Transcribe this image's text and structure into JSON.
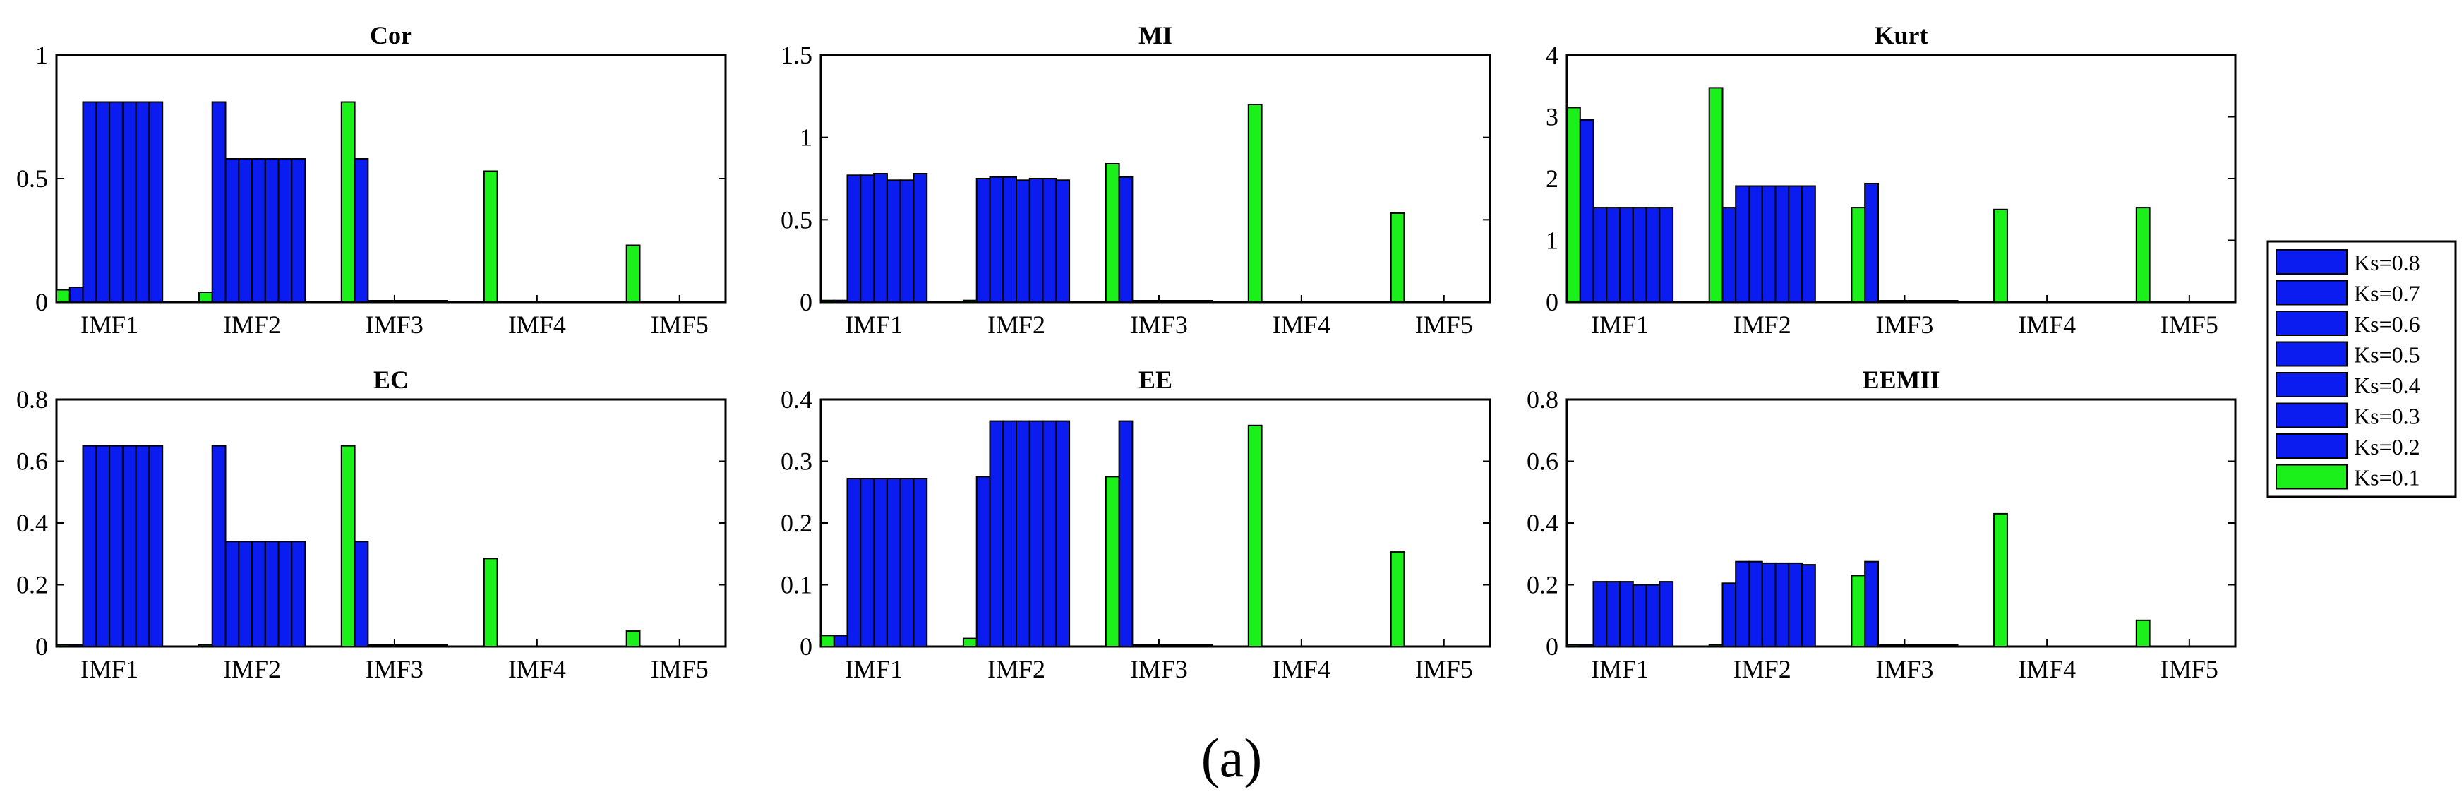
{
  "figure": {
    "caption": "(a)"
  },
  "colors": {
    "blue": "#0B1CF0",
    "green": "#1BF01B",
    "edge": "#000000"
  },
  "legend": {
    "entries": [
      {
        "label": "Ks=0.8",
        "color": "#0B1CF0"
      },
      {
        "label": "Ks=0.7",
        "color": "#0B1CF0"
      },
      {
        "label": "Ks=0.6",
        "color": "#0B1CF0"
      },
      {
        "label": "Ks=0.5",
        "color": "#0B1CF0"
      },
      {
        "label": "Ks=0.4",
        "color": "#0B1CF0"
      },
      {
        "label": "Ks=0.3",
        "color": "#0B1CF0"
      },
      {
        "label": "Ks=0.2",
        "color": "#0B1CF0"
      },
      {
        "label": "Ks=0.1",
        "color": "#1BF01B"
      }
    ]
  },
  "chart_data": [
    {
      "type": "bar",
      "title": "Cor",
      "categories": [
        "IMF1",
        "IMF2",
        "IMF3",
        "IMF4",
        "IMF5"
      ],
      "ylim": [
        0,
        1
      ],
      "yticks": [
        "0",
        "0.5",
        "1"
      ],
      "ytick_values": [
        0,
        0.5,
        1
      ],
      "series": [
        {
          "name": "Ks=0.1",
          "values": [
            0.05,
            0.04,
            0.81,
            0.53,
            0.23
          ]
        },
        {
          "name": "Ks=0.2",
          "values": [
            0.06,
            0.81,
            0.58,
            0,
            0
          ]
        },
        {
          "name": "Ks=0.3",
          "values": [
            0.81,
            0.58,
            0,
            0,
            0
          ]
        },
        {
          "name": "Ks=0.4",
          "values": [
            0.81,
            0.58,
            0,
            0,
            0
          ]
        },
        {
          "name": "Ks=0.5",
          "values": [
            0.81,
            0.58,
            0,
            0,
            0
          ]
        },
        {
          "name": "Ks=0.6",
          "values": [
            0.81,
            0.58,
            0,
            0,
            0
          ]
        },
        {
          "name": "Ks=0.7",
          "values": [
            0.81,
            0.58,
            0,
            0,
            0
          ]
        },
        {
          "name": "Ks=0.8",
          "values": [
            0.81,
            0.58,
            0,
            0,
            0
          ]
        }
      ]
    },
    {
      "type": "bar",
      "title": "MI",
      "categories": [
        "IMF1",
        "IMF2",
        "IMF3",
        "IMF4",
        "IMF5"
      ],
      "ylim": [
        0,
        1.5
      ],
      "yticks": [
        "0",
        "0.5",
        "1",
        "1.5"
      ],
      "ytick_values": [
        0,
        0.5,
        1,
        1.5
      ],
      "series": [
        {
          "name": "Ks=0.1",
          "values": [
            0.01,
            0.01,
            0.84,
            1.2,
            0.54
          ]
        },
        {
          "name": "Ks=0.2",
          "values": [
            0.01,
            0.75,
            0.76,
            0,
            0
          ]
        },
        {
          "name": "Ks=0.3",
          "values": [
            0.77,
            0.76,
            0,
            0,
            0
          ]
        },
        {
          "name": "Ks=0.4",
          "values": [
            0.77,
            0.76,
            0,
            0,
            0
          ]
        },
        {
          "name": "Ks=0.5",
          "values": [
            0.78,
            0.74,
            0,
            0,
            0
          ]
        },
        {
          "name": "Ks=0.6",
          "values": [
            0.74,
            0.75,
            0,
            0,
            0
          ]
        },
        {
          "name": "Ks=0.7",
          "values": [
            0.74,
            0.75,
            0,
            0,
            0
          ]
        },
        {
          "name": "Ks=0.8",
          "values": [
            0.78,
            0.74,
            0,
            0,
            0
          ]
        }
      ]
    },
    {
      "type": "bar",
      "title": "Kurt",
      "categories": [
        "IMF1",
        "IMF2",
        "IMF3",
        "IMF4",
        "IMF5"
      ],
      "ylim": [
        0,
        4
      ],
      "yticks": [
        "0",
        "1",
        "2",
        "3",
        "4"
      ],
      "ytick_values": [
        0,
        1,
        2,
        3,
        4
      ],
      "series": [
        {
          "name": "Ks=0.1",
          "values": [
            3.15,
            3.47,
            1.53,
            1.5,
            1.53
          ]
        },
        {
          "name": "Ks=0.2",
          "values": [
            2.95,
            1.53,
            1.92,
            0,
            0
          ]
        },
        {
          "name": "Ks=0.3",
          "values": [
            1.53,
            1.88,
            0,
            0,
            0
          ]
        },
        {
          "name": "Ks=0.4",
          "values": [
            1.53,
            1.88,
            0,
            0,
            0
          ]
        },
        {
          "name": "Ks=0.5",
          "values": [
            1.53,
            1.88,
            0,
            0,
            0
          ]
        },
        {
          "name": "Ks=0.6",
          "values": [
            1.53,
            1.88,
            0,
            0,
            0
          ]
        },
        {
          "name": "Ks=0.7",
          "values": [
            1.53,
            1.88,
            0,
            0,
            0
          ]
        },
        {
          "name": "Ks=0.8",
          "values": [
            1.53,
            1.88,
            0,
            0,
            0
          ]
        }
      ]
    },
    {
      "type": "bar",
      "title": "EC",
      "categories": [
        "IMF1",
        "IMF2",
        "IMF3",
        "IMF4",
        "IMF5"
      ],
      "ylim": [
        0,
        0.8
      ],
      "yticks": [
        "0",
        "0.2",
        "0.4",
        "0.6",
        "0.8"
      ],
      "ytick_values": [
        0,
        0.2,
        0.4,
        0.6,
        0.8
      ],
      "series": [
        {
          "name": "Ks=0.1",
          "values": [
            0.005,
            0.005,
            0.65,
            0.285,
            0.05
          ]
        },
        {
          "name": "Ks=0.2",
          "values": [
            0.005,
            0.65,
            0.34,
            0,
            0
          ]
        },
        {
          "name": "Ks=0.3",
          "values": [
            0.65,
            0.34,
            0,
            0,
            0
          ]
        },
        {
          "name": "Ks=0.4",
          "values": [
            0.65,
            0.34,
            0,
            0,
            0
          ]
        },
        {
          "name": "Ks=0.5",
          "values": [
            0.65,
            0.34,
            0,
            0,
            0
          ]
        },
        {
          "name": "Ks=0.6",
          "values": [
            0.65,
            0.34,
            0,
            0,
            0
          ]
        },
        {
          "name": "Ks=0.7",
          "values": [
            0.65,
            0.34,
            0,
            0,
            0
          ]
        },
        {
          "name": "Ks=0.8",
          "values": [
            0.65,
            0.34,
            0,
            0,
            0
          ]
        }
      ]
    },
    {
      "type": "bar",
      "title": "EE",
      "categories": [
        "IMF1",
        "IMF2",
        "IMF3",
        "IMF4",
        "IMF5"
      ],
      "ylim": [
        0,
        0.4
      ],
      "yticks": [
        "0",
        "0.1",
        "0.2",
        "0.3",
        "0.4"
      ],
      "ytick_values": [
        0,
        0.1,
        0.2,
        0.3,
        0.4
      ],
      "series": [
        {
          "name": "Ks=0.1",
          "values": [
            0.018,
            0.013,
            0.275,
            0.358,
            0.153
          ]
        },
        {
          "name": "Ks=0.2",
          "values": [
            0.018,
            0.275,
            0.365,
            0,
            0
          ]
        },
        {
          "name": "Ks=0.3",
          "values": [
            0.272,
            0.365,
            0,
            0,
            0
          ]
        },
        {
          "name": "Ks=0.4",
          "values": [
            0.272,
            0.365,
            0,
            0,
            0
          ]
        },
        {
          "name": "Ks=0.5",
          "values": [
            0.272,
            0.365,
            0,
            0,
            0
          ]
        },
        {
          "name": "Ks=0.6",
          "values": [
            0.272,
            0.365,
            0,
            0,
            0
          ]
        },
        {
          "name": "Ks=0.7",
          "values": [
            0.272,
            0.365,
            0,
            0,
            0
          ]
        },
        {
          "name": "Ks=0.8",
          "values": [
            0.272,
            0.365,
            0,
            0,
            0
          ]
        }
      ]
    },
    {
      "type": "bar",
      "title": "EEMII",
      "categories": [
        "IMF1",
        "IMF2",
        "IMF3",
        "IMF4",
        "IMF5"
      ],
      "ylim": [
        0,
        0.8
      ],
      "yticks": [
        "0",
        "0.2",
        "0.4",
        "0.6",
        "0.8"
      ],
      "ytick_values": [
        0,
        0.2,
        0.4,
        0.6,
        0.8
      ],
      "series": [
        {
          "name": "Ks=0.1",
          "values": [
            0.005,
            0.005,
            0.23,
            0.43,
            0.085
          ]
        },
        {
          "name": "Ks=0.2",
          "values": [
            0.005,
            0.205,
            0.275,
            0,
            0
          ]
        },
        {
          "name": "Ks=0.3",
          "values": [
            0.21,
            0.275,
            0,
            0,
            0
          ]
        },
        {
          "name": "Ks=0.4",
          "values": [
            0.21,
            0.275,
            0,
            0,
            0
          ]
        },
        {
          "name": "Ks=0.5",
          "values": [
            0.21,
            0.27,
            0,
            0,
            0
          ]
        },
        {
          "name": "Ks=0.6",
          "values": [
            0.2,
            0.27,
            0,
            0,
            0
          ]
        },
        {
          "name": "Ks=0.7",
          "values": [
            0.2,
            0.27,
            0,
            0,
            0
          ]
        },
        {
          "name": "Ks=0.8",
          "values": [
            0.21,
            0.265,
            0,
            0,
            0
          ]
        }
      ]
    }
  ]
}
